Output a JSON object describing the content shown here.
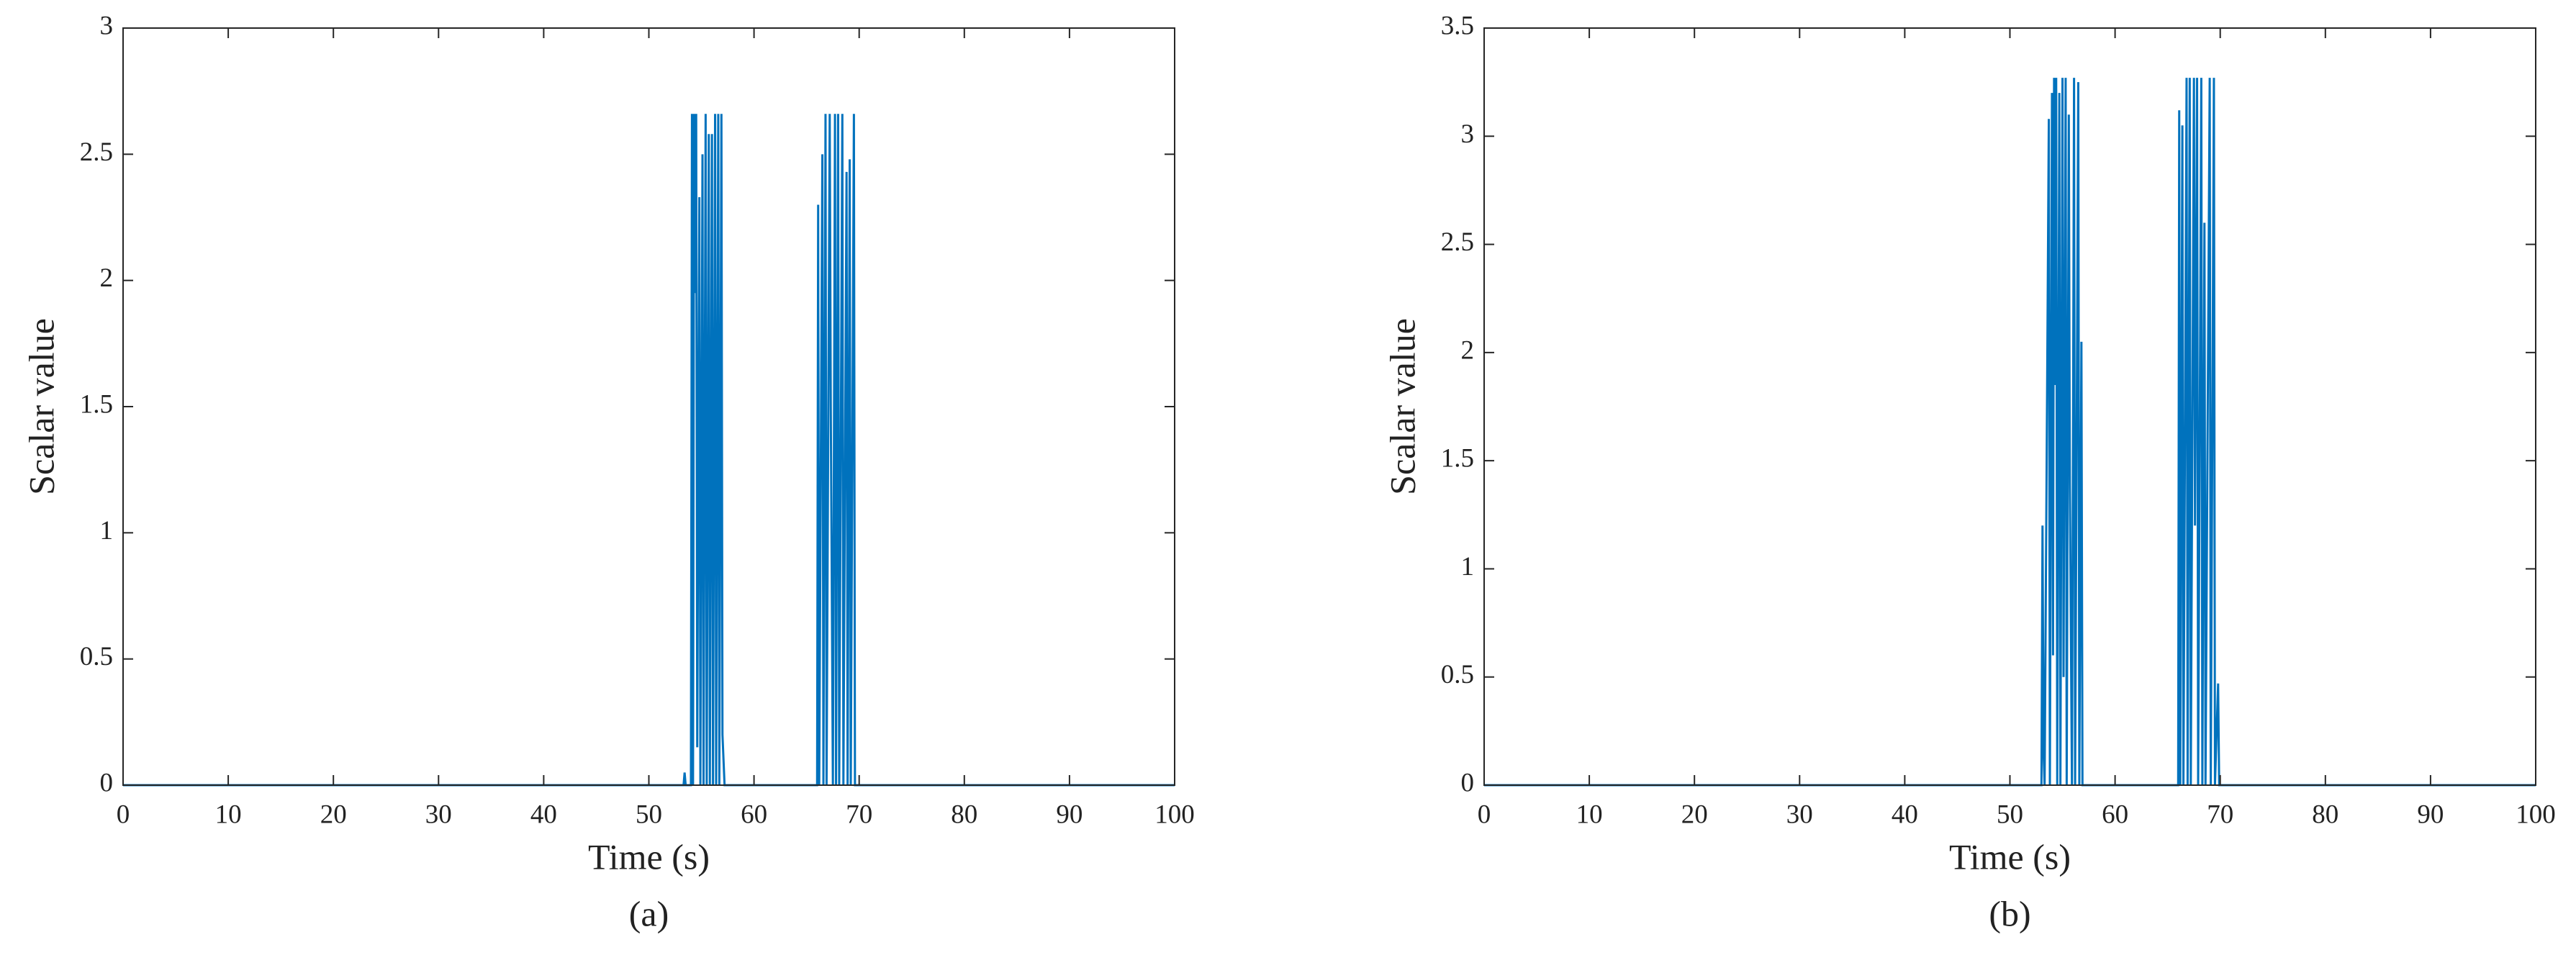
{
  "chart_data": [
    {
      "type": "line",
      "xlabel": "Time (s)",
      "ylabel": "Scalar value",
      "caption": "(a)",
      "xlim": [
        0,
        100
      ],
      "ylim": [
        0,
        3
      ],
      "xticks": [
        0,
        10,
        20,
        30,
        40,
        50,
        60,
        70,
        80,
        90,
        100
      ],
      "yticks": [
        0,
        0.5,
        1,
        1.5,
        2,
        2.5,
        3
      ],
      "color": "#0072bd",
      "x": [
        0,
        53.3,
        53.4,
        53.5,
        54,
        54.1,
        54.2,
        54.3,
        54.4,
        54.5,
        54.6,
        54.8,
        54.9,
        55.1,
        55.2,
        55.4,
        55.5,
        55.7,
        55.8,
        56,
        56.1,
        56.3,
        56.4,
        56.6,
        56.7,
        56.9,
        57,
        57.2,
        66,
        66.1,
        66.2,
        66.5,
        66.6,
        66.8,
        66.9,
        67.2,
        67.3,
        67.5,
        67.7,
        67.8,
        68,
        68.1,
        68.4,
        68.5,
        68.8,
        68.9,
        69.1,
        69.2,
        69.5,
        69.6,
        100
      ],
      "values": [
        0,
        0,
        0.05,
        0,
        0,
        2.66,
        0,
        2.66,
        1.95,
        2.66,
        0.15,
        2.33,
        0,
        2.5,
        0,
        2.66,
        0,
        2.58,
        0,
        2.58,
        0,
        2.66,
        0,
        2.66,
        0,
        2.66,
        0.2,
        0,
        0,
        2.3,
        0,
        2.5,
        0,
        2.66,
        0,
        2.66,
        1.5,
        0,
        2.66,
        0,
        2.66,
        0,
        2.66,
        0,
        2.43,
        0,
        2.48,
        0,
        2.66,
        0,
        0
      ]
    },
    {
      "type": "line",
      "xlabel": "Time (s)",
      "ylabel": "Scalar value",
      "caption": "(b)",
      "xlim": [
        0,
        100
      ],
      "ylim": [
        0,
        3.5
      ],
      "xticks": [
        0,
        10,
        20,
        30,
        40,
        50,
        60,
        70,
        80,
        90,
        100
      ],
      "yticks": [
        0,
        0.5,
        1,
        1.5,
        2,
        2.5,
        3,
        3.5
      ],
      "color": "#0072bd",
      "x": [
        0,
        53,
        53.1,
        53.2,
        53.3,
        53.7,
        53.8,
        54,
        54.1,
        54.2,
        54.3,
        54.4,
        54.5,
        54.7,
        54.8,
        55,
        55.1,
        55.3,
        55.4,
        55.6,
        55.7,
        55.9,
        56.1,
        56.2,
        56.5,
        56.6,
        56.8,
        56.9,
        66,
        66.1,
        66.2,
        66.4,
        66.5,
        66.8,
        66.9,
        67.1,
        67.2,
        67.5,
        67.6,
        67.8,
        67.9,
        68.2,
        68.3,
        68.5,
        68.6,
        69,
        69.1,
        69.4,
        69.5,
        69.8,
        69.9,
        100
      ],
      "values": [
        0,
        0,
        1.2,
        0.15,
        0,
        3.08,
        0,
        3.2,
        0.6,
        3.27,
        1.85,
        3.27,
        0,
        3.2,
        0,
        3.27,
        0.5,
        3.27,
        0,
        3.1,
        1.4,
        0,
        3.27,
        0,
        3.25,
        0,
        2.05,
        0,
        0,
        3.12,
        0,
        3.05,
        0,
        3.27,
        0,
        3.27,
        0,
        3.27,
        1.2,
        3.27,
        0,
        3.27,
        0,
        2.6,
        0,
        3.27,
        0,
        3.27,
        0,
        0.47,
        0,
        0
      ]
    }
  ]
}
